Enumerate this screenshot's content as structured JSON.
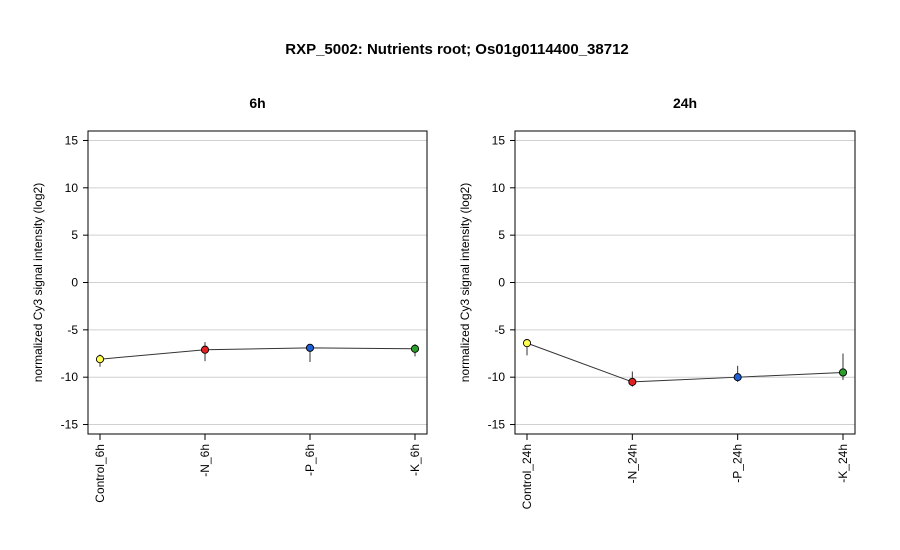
{
  "title": "RXP_5002: Nutrients root; Os01g0114400_38712",
  "chart_data": [
    {
      "type": "line",
      "title": "6h",
      "ylabel": "normalized Cy3 signal intensity (log2)",
      "xlabel": "",
      "ylim": [
        -16,
        16
      ],
      "yticks": [
        "15",
        "10",
        "5",
        "0",
        "-5",
        "-10",
        "-15"
      ],
      "grid": true,
      "categories": [
        "Control_6h",
        "-N_6h",
        "-P_6h",
        "-K_6h"
      ],
      "values": [
        -8.1,
        -7.1,
        -6.9,
        -7.0
      ],
      "error_low": [
        -8.9,
        -8.3,
        -8.4,
        -7.8
      ],
      "error_high": [
        -7.6,
        -6.3,
        -6.5,
        -6.5
      ],
      "point_colors": [
        "#ffff4d",
        "#e52020",
        "#1f5fd6",
        "#2aa02a"
      ]
    },
    {
      "type": "line",
      "title": "24h",
      "ylabel": "normalized Cy3 signal intensity (log2)",
      "xlabel": "",
      "ylim": [
        -16,
        16
      ],
      "yticks": [
        "15",
        "10",
        "5",
        "0",
        "-5",
        "-10",
        "-15"
      ],
      "grid": true,
      "categories": [
        "Control_24h",
        "-N_24h",
        "-P_24h",
        "-K_24h"
      ],
      "values": [
        -6.4,
        -10.5,
        -10.0,
        -9.5
      ],
      "error_low": [
        -7.7,
        -11.0,
        -10.5,
        -10.3
      ],
      "error_high": [
        -6.0,
        -9.4,
        -8.8,
        -7.5
      ],
      "point_colors": [
        "#ffff4d",
        "#e52020",
        "#1f5fd6",
        "#2aa02a"
      ]
    }
  ]
}
